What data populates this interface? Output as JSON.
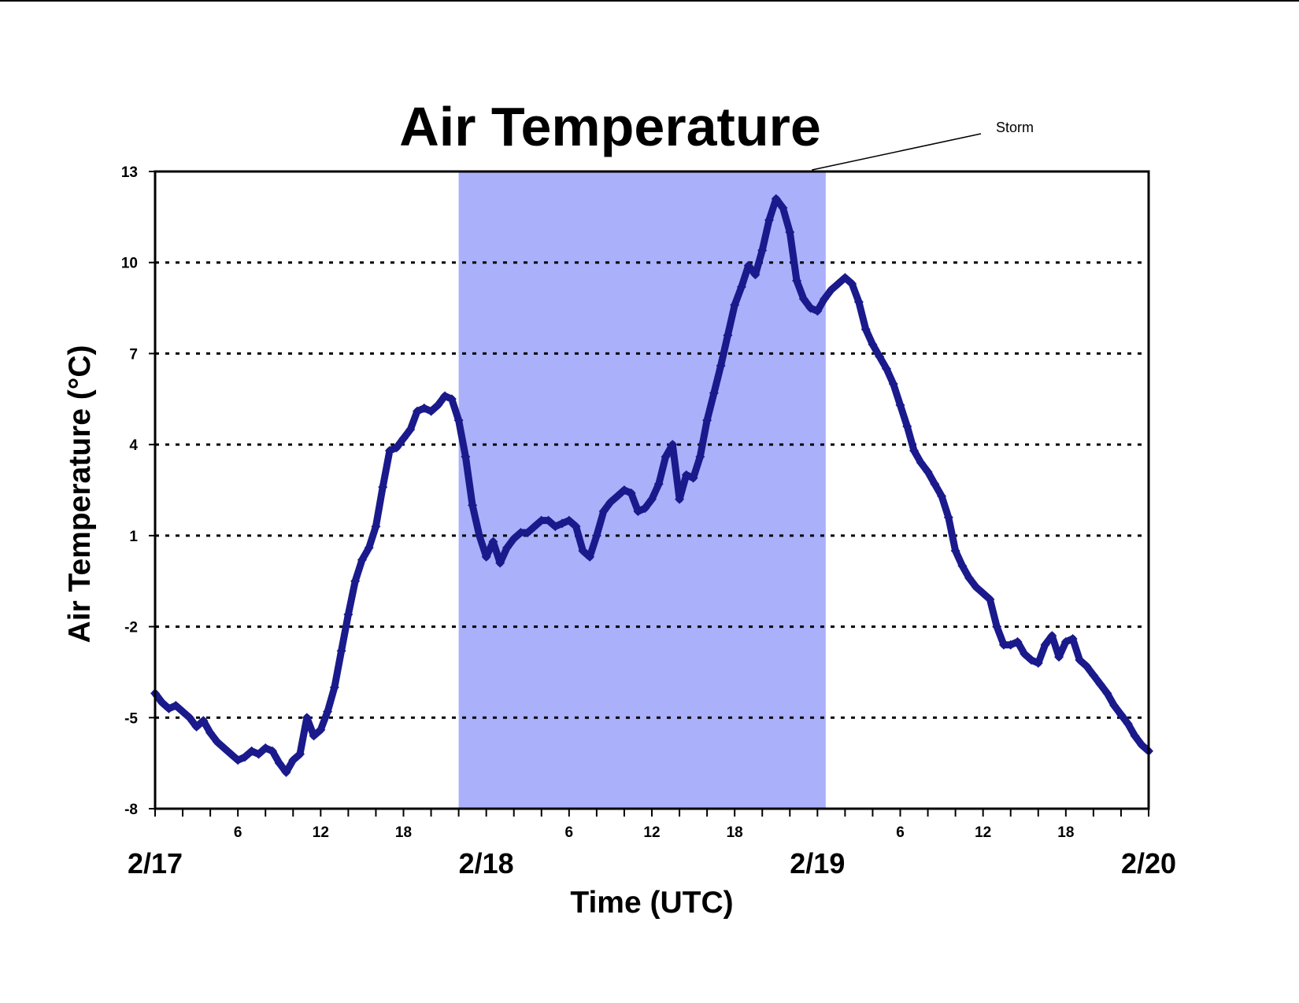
{
  "chart_data": {
    "type": "line",
    "title": "Air Temperature",
    "xlabel": "Time (UTC)",
    "ylabel": "Air Temperature (°C)",
    "ylim": [
      -8,
      13
    ],
    "yticks": [
      13,
      10,
      7,
      4,
      1,
      -2,
      -5,
      -8
    ],
    "grid": "horizontal dotted lines at each y tick",
    "x_unit": "hours after 2/17 00:00 UTC",
    "xlim": [
      0,
      72
    ],
    "date_ticks": [
      {
        "x": 0,
        "label": "2/17"
      },
      {
        "x": 24,
        "label": "2/18"
      },
      {
        "x": 48,
        "label": "2/19"
      },
      {
        "x": 72,
        "label": "2/20"
      }
    ],
    "hour_ticks": [
      {
        "x": 6,
        "label": "6"
      },
      {
        "x": 12,
        "label": "12"
      },
      {
        "x": 18,
        "label": "18"
      },
      {
        "x": 30,
        "label": "6"
      },
      {
        "x": 36,
        "label": "12"
      },
      {
        "x": 42,
        "label": "18"
      },
      {
        "x": 54,
        "label": "6"
      },
      {
        "x": 60,
        "label": "12"
      },
      {
        "x": 66,
        "label": "18"
      }
    ],
    "shaded_region": {
      "label": "Storm",
      "x_start": 22,
      "x_end": 48.6,
      "color": "#aab0fa"
    },
    "series": [
      {
        "color": "#1a1a8c",
        "marker": "diamond",
        "points": [
          [
            0.0,
            -4.2
          ],
          [
            0.5,
            -4.5
          ],
          [
            1.0,
            -4.7
          ],
          [
            1.5,
            -4.6
          ],
          [
            2.0,
            -4.8
          ],
          [
            2.5,
            -5.0
          ],
          [
            3.0,
            -5.3
          ],
          [
            3.5,
            -5.1
          ],
          [
            4.0,
            -5.5
          ],
          [
            4.5,
            -5.8
          ],
          [
            5.0,
            -6.0
          ],
          [
            5.5,
            -6.2
          ],
          [
            6.0,
            -6.4
          ],
          [
            6.5,
            -6.3
          ],
          [
            7.0,
            -6.1
          ],
          [
            7.5,
            -6.2
          ],
          [
            8.0,
            -6.0
          ],
          [
            8.5,
            -6.1
          ],
          [
            9.0,
            -6.5
          ],
          [
            9.5,
            -6.8
          ],
          [
            10.0,
            -6.4
          ],
          [
            10.5,
            -6.2
          ],
          [
            11.0,
            -5.0
          ],
          [
            11.5,
            -5.6
          ],
          [
            12.0,
            -5.4
          ],
          [
            12.5,
            -4.8
          ],
          [
            13.0,
            -4.0
          ],
          [
            13.5,
            -2.8
          ],
          [
            14.0,
            -1.6
          ],
          [
            14.5,
            -0.5
          ],
          [
            15.0,
            0.2
          ],
          [
            15.5,
            0.6
          ],
          [
            16.0,
            1.3
          ],
          [
            16.5,
            2.6
          ],
          [
            17.0,
            3.8
          ],
          [
            17.5,
            3.9
          ],
          [
            18.0,
            4.2
          ],
          [
            18.5,
            4.5
          ],
          [
            19.0,
            5.1
          ],
          [
            19.5,
            5.2
          ],
          [
            20.0,
            5.1
          ],
          [
            20.5,
            5.3
          ],
          [
            21.0,
            5.6
          ],
          [
            21.5,
            5.5
          ],
          [
            22.0,
            4.8
          ],
          [
            22.5,
            3.6
          ],
          [
            23.0,
            2.0
          ],
          [
            23.5,
            1.0
          ],
          [
            24.0,
            0.3
          ],
          [
            24.5,
            0.8
          ],
          [
            25.0,
            0.1
          ],
          [
            25.5,
            0.6
          ],
          [
            26.0,
            0.9
          ],
          [
            26.5,
            1.1
          ],
          [
            27.0,
            1.1
          ],
          [
            27.5,
            1.3
          ],
          [
            28.0,
            1.5
          ],
          [
            28.5,
            1.5
          ],
          [
            29.0,
            1.3
          ],
          [
            29.5,
            1.4
          ],
          [
            30.0,
            1.5
          ],
          [
            30.5,
            1.3
          ],
          [
            31.0,
            0.5
          ],
          [
            31.5,
            0.3
          ],
          [
            32.0,
            1.0
          ],
          [
            32.5,
            1.8
          ],
          [
            33.0,
            2.1
          ],
          [
            33.5,
            2.3
          ],
          [
            34.0,
            2.5
          ],
          [
            34.5,
            2.4
          ],
          [
            35.0,
            1.8
          ],
          [
            35.5,
            1.9
          ],
          [
            36.0,
            2.2
          ],
          [
            36.5,
            2.7
          ],
          [
            37.0,
            3.6
          ],
          [
            37.5,
            4.0
          ],
          [
            38.0,
            2.2
          ],
          [
            38.5,
            3.0
          ],
          [
            39.0,
            2.9
          ],
          [
            39.5,
            3.6
          ],
          [
            40.0,
            4.8
          ],
          [
            40.5,
            5.7
          ],
          [
            41.0,
            6.6
          ],
          [
            41.5,
            7.6
          ],
          [
            42.0,
            8.6
          ],
          [
            42.5,
            9.2
          ],
          [
            43.0,
            9.9
          ],
          [
            43.5,
            9.6
          ],
          [
            44.0,
            10.4
          ],
          [
            44.5,
            11.4
          ],
          [
            45.0,
            12.1
          ],
          [
            45.5,
            11.8
          ],
          [
            46.0,
            11.0
          ],
          [
            46.5,
            9.4
          ],
          [
            47.0,
            8.8
          ],
          [
            47.5,
            8.5
          ],
          [
            48.0,
            8.4
          ],
          [
            48.5,
            8.8
          ],
          [
            49.0,
            9.1
          ],
          [
            49.5,
            9.3
          ],
          [
            50.0,
            9.5
          ],
          [
            50.5,
            9.3
          ],
          [
            51.0,
            8.7
          ],
          [
            51.5,
            7.8
          ],
          [
            52.0,
            7.3
          ],
          [
            52.5,
            6.9
          ],
          [
            53.0,
            6.5
          ],
          [
            53.5,
            6.0
          ],
          [
            54.0,
            5.3
          ],
          [
            54.5,
            4.6
          ],
          [
            55.0,
            3.8
          ],
          [
            55.5,
            3.4
          ],
          [
            56.0,
            3.1
          ],
          [
            56.5,
            2.7
          ],
          [
            57.0,
            2.3
          ],
          [
            57.5,
            1.6
          ],
          [
            58.0,
            0.5
          ],
          [
            58.5,
            0.0
          ],
          [
            59.0,
            -0.4
          ],
          [
            59.5,
            -0.7
          ],
          [
            60.0,
            -0.9
          ],
          [
            60.5,
            -1.1
          ],
          [
            61.0,
            -2.0
          ],
          [
            61.5,
            -2.6
          ],
          [
            62.0,
            -2.6
          ],
          [
            62.5,
            -2.5
          ],
          [
            63.0,
            -2.9
          ],
          [
            63.5,
            -3.1
          ],
          [
            64.0,
            -3.2
          ],
          [
            64.5,
            -2.6
          ],
          [
            65.0,
            -2.3
          ],
          [
            65.5,
            -3.0
          ],
          [
            66.0,
            -2.5
          ],
          [
            66.5,
            -2.4
          ],
          [
            67.0,
            -3.1
          ],
          [
            67.5,
            -3.3
          ],
          [
            68.0,
            -3.6
          ],
          [
            68.5,
            -3.9
          ],
          [
            69.0,
            -4.2
          ],
          [
            69.5,
            -4.6
          ],
          [
            70.0,
            -4.9
          ],
          [
            70.5,
            -5.2
          ],
          [
            71.0,
            -5.6
          ],
          [
            71.5,
            -5.9
          ],
          [
            72.0,
            -6.1
          ]
        ]
      }
    ]
  }
}
